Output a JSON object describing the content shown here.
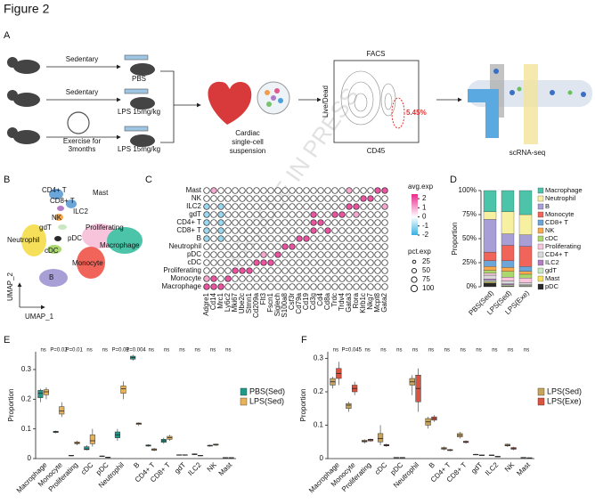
{
  "figure": {
    "title": "Figure 2",
    "panel_labels": [
      "A",
      "B",
      "C",
      "D",
      "E",
      "F"
    ],
    "watermark": "ARTICLE IN PRESS"
  },
  "panel_a": {
    "groups": [
      {
        "condition": [
          "Sedentary"
        ],
        "treatment": "PBS"
      },
      {
        "condition": [
          "Sedentary"
        ],
        "treatment": "LPS 15mg/kg"
      },
      {
        "condition": [
          "Exercise for",
          "3months"
        ],
        "treatment": "LPS 15mg/kg"
      }
    ],
    "suspension": [
      "Cardiac",
      "single-cell",
      "suspension"
    ],
    "facs_title": "FACS",
    "facs_y": "Live/Dead",
    "facs_x": "CD45",
    "gate": "5.45%",
    "sequencing": "scRNA-seq"
  },
  "panel_b": {
    "clusters": [
      "CD4+ T",
      "Mast",
      "CD8+ T",
      "ILC2",
      "NK",
      "gdT",
      "Proliferating",
      "Neutrophil",
      "pDC",
      "Macrophage",
      "cDC",
      "Monocyte",
      "B"
    ],
    "x_label": "UMAP_1",
    "y_label": "UMAP_2"
  },
  "chart_data": [
    {
      "type": "dotplot",
      "rows": [
        "Mast",
        "NK",
        "ILC2",
        "gdT",
        "CD4+ T",
        "CD8+ T",
        "B",
        "Neutrophil",
        "pDC",
        "cDC",
        "Proliferating",
        "Monocyte",
        "Macrophage"
      ],
      "categories": [
        "Adgre1",
        "Cd14",
        "Mrc1",
        "Ly6c2",
        "Mki67",
        "Ube2c",
        "Stmn1",
        "Cd209a",
        "Flt3",
        "Fscn1",
        "Siglech",
        "S100a8",
        "Csf3r",
        "Cd79a",
        "Cd19",
        "Cd3g",
        "Cd4",
        "Cd8a",
        "Trdc",
        "Trdv4",
        "Gata3",
        "Rora",
        "Klrb1c",
        "Nkg7",
        "Mcpt8",
        "Gata2"
      ],
      "values": [
        [
          0,
          1,
          0,
          0,
          0,
          0,
          0,
          0,
          0,
          0,
          0,
          0,
          0,
          0,
          0,
          0,
          0,
          0,
          0,
          0,
          1,
          0,
          0,
          0,
          2,
          2
        ],
        [
          0,
          0,
          0,
          0,
          0,
          0,
          0,
          0,
          0,
          0,
          0,
          0,
          0,
          0,
          0,
          0,
          0,
          0,
          0,
          0,
          0,
          0,
          2,
          2,
          0,
          0
        ],
        [
          -1,
          0,
          -1,
          0,
          0,
          0,
          0,
          0,
          0,
          0,
          0,
          0,
          0,
          0,
          0,
          0,
          0,
          0,
          0,
          0,
          2,
          2,
          0,
          0,
          0,
          1
        ],
        [
          -1,
          0,
          -1,
          0,
          0,
          0,
          0,
          0,
          0,
          0,
          0,
          0,
          0,
          0,
          0,
          2,
          0,
          0,
          2,
          2,
          0,
          1,
          0,
          0,
          0,
          0
        ],
        [
          -1,
          0,
          -1,
          0,
          0,
          0,
          0,
          0,
          0,
          0,
          0,
          0,
          0,
          0,
          0,
          2,
          2,
          0,
          0,
          0,
          0,
          0,
          0,
          0,
          0,
          0
        ],
        [
          -1,
          0,
          -1,
          0,
          0,
          0,
          0,
          0,
          0,
          0,
          0,
          0,
          0,
          0,
          0,
          2,
          0,
          2,
          0,
          0,
          0,
          0,
          0,
          0,
          0,
          0
        ],
        [
          -1,
          0,
          -1,
          0,
          0,
          0,
          0,
          0,
          0,
          0,
          0,
          0,
          0,
          2,
          2,
          0,
          0,
          0,
          0,
          0,
          0,
          0,
          0,
          0,
          0,
          0
        ],
        [
          0,
          0,
          0,
          0,
          0,
          0,
          0,
          0,
          0,
          0,
          0,
          2,
          2,
          0,
          0,
          0,
          0,
          0,
          0,
          0,
          0,
          0,
          0,
          0,
          0,
          0
        ],
        [
          0,
          0,
          0,
          0,
          0,
          0,
          0,
          0,
          1,
          0,
          2,
          0,
          0,
          0,
          0,
          0,
          0,
          0,
          0,
          0,
          0,
          0,
          0,
          0,
          0,
          0
        ],
        [
          0,
          0,
          0,
          0,
          0,
          0,
          0,
          2,
          2,
          2,
          0,
          0,
          0,
          0,
          0,
          0,
          0,
          0,
          0,
          0,
          0,
          0,
          0,
          0,
          0,
          0
        ],
        [
          0,
          0,
          0,
          0,
          2,
          2,
          2,
          0,
          0,
          0,
          0,
          0,
          0,
          0,
          0,
          0,
          0,
          0,
          0,
          0,
          0,
          0,
          0,
          0,
          0,
          0
        ],
        [
          1,
          2,
          0,
          2,
          0,
          0,
          0,
          0,
          0,
          0,
          0,
          0,
          0,
          0,
          0,
          0,
          0,
          0,
          0,
          0,
          0,
          0,
          0,
          0,
          0,
          0
        ],
        [
          2,
          2,
          2,
          0,
          0,
          0,
          0,
          0,
          0,
          0,
          0,
          0,
          0,
          0,
          0,
          0,
          0,
          0,
          0,
          0,
          0,
          0,
          0,
          0,
          0,
          0
        ]
      ],
      "color_title": "avg.exp",
      "colorlim": [
        -2,
        2.5
      ],
      "color_ticks": [
        2,
        1,
        0,
        -1,
        -2
      ],
      "colors": [
        "#3ab0e3",
        "#ffffff",
        "#e7298a"
      ],
      "size_title": "pct.exp",
      "size_ticks": [
        25,
        50,
        75,
        100
      ]
    },
    {
      "type": "stacked_bar",
      "categories": [
        "PBS(Sed)",
        "LPS(Sed)",
        "LPS(Exe)"
      ],
      "y_label": "Proportion",
      "ylim": [
        0,
        100
      ],
      "yticks": [
        {
          "value": 0,
          "label": "0%"
        },
        {
          "value": 25,
          "label": "25%"
        },
        {
          "value": 50,
          "label": "50%"
        },
        {
          "value": 75,
          "label": "75%"
        },
        {
          "value": 100,
          "label": "100%"
        }
      ],
      "series": [
        {
          "name": "Macrophage",
          "color": "#4bc4a9",
          "values": [
            22,
            22,
            25
          ]
        },
        {
          "name": "Neutrophil",
          "color": "#f7f0a0",
          "values": [
            8,
            23,
            21
          ]
        },
        {
          "name": "B",
          "color": "#a79fd6",
          "values": [
            34,
            12,
            12
          ]
        },
        {
          "name": "Monocyte",
          "color": "#f0645a",
          "values": [
            9,
            16,
            21
          ]
        },
        {
          "name": "CD8+ T",
          "color": "#6ca6d9",
          "values": [
            6,
            7,
            5
          ]
        },
        {
          "name": "NK",
          "color": "#f9a94b",
          "values": [
            4,
            4,
            3
          ]
        },
        {
          "name": "cDC",
          "color": "#a8d86e",
          "values": [
            3,
            6,
            4
          ]
        },
        {
          "name": "Proliferating",
          "color": "#f7c4dc",
          "values": [
            2,
            4,
            5
          ]
        },
        {
          "name": "CD4+ T",
          "color": "#d9d9d9",
          "values": [
            4,
            3,
            2
          ]
        },
        {
          "name": "ILC2",
          "color": "#b47cc7",
          "values": [
            1.5,
            1,
            0.5
          ]
        },
        {
          "name": "gdT",
          "color": "#c9e7c0",
          "values": [
            1.5,
            1,
            1
          ]
        },
        {
          "name": "Mast",
          "color": "#f6e05a",
          "values": [
            1,
            0.5,
            0.3
          ]
        },
        {
          "name": "pDC",
          "color": "#2a2a2a",
          "values": [
            4,
            0.5,
            0.2
          ]
        }
      ]
    },
    {
      "type": "box",
      "categories": [
        "Macrophage",
        "Monocyte",
        "Proliferating",
        "cDC",
        "pDC",
        "Neutrophil",
        "B",
        "CD4+ T",
        "CD8+ T",
        "gdT",
        "ILC2",
        "NK",
        "Mast"
      ],
      "significance": [
        "ns",
        "P=0.02",
        "P=0.01",
        "ns",
        "ns",
        "P=0.01",
        "P=0.004",
        "ns",
        "ns",
        "ns",
        "ns",
        "ns",
        "ns"
      ],
      "y_label": "Proportion",
      "ylim": [
        0,
        0.36
      ],
      "yticks": [
        0,
        0.1,
        0.2,
        0.3
      ],
      "series": [
        {
          "name": "PBS(Sed)",
          "color": "#1f9a8a",
          "boxes": [
            [
              0.19,
              0.205,
              0.22,
              0.23,
              0.235
            ],
            [
              0.085,
              0.088,
              0.09,
              0.092,
              0.094
            ],
            [
              0.008,
              0.009,
              0.01,
              0.011,
              0.012
            ],
            [
              0.028,
              0.03,
              0.032,
              0.04,
              0.045
            ],
            [
              0.006,
              0.007,
              0.008,
              0.009,
              0.01
            ],
            [
              0.06,
              0.07,
              0.08,
              0.09,
              0.1
            ],
            [
              0.33,
              0.335,
              0.34,
              0.345,
              0.35
            ],
            [
              0.04,
              0.042,
              0.044,
              0.046,
              0.048
            ],
            [
              0.05,
              0.055,
              0.06,
              0.065,
              0.07
            ],
            [
              0.01,
              0.011,
              0.012,
              0.013,
              0.014
            ],
            [
              0.012,
              0.013,
              0.015,
              0.016,
              0.017
            ],
            [
              0.04,
              0.042,
              0.044,
              0.045,
              0.047
            ],
            [
              0.002,
              0.0025,
              0.003,
              0.0035,
              0.004
            ]
          ]
        },
        {
          "name": "LPS(Sed)",
          "color": "#e8b25a",
          "boxes": [
            [
              0.2,
              0.215,
              0.225,
              0.232,
              0.24
            ],
            [
              0.14,
              0.15,
              0.16,
              0.175,
              0.19
            ],
            [
              0.045,
              0.05,
              0.053,
              0.056,
              0.06
            ],
            [
              0.04,
              0.05,
              0.06,
              0.08,
              0.1
            ],
            [
              0.002,
              0.003,
              0.004,
              0.005,
              0.006
            ],
            [
              0.2,
              0.22,
              0.235,
              0.245,
              0.26
            ],
            [
              0.11,
              0.115,
              0.118,
              0.12,
              0.122
            ],
            [
              0.025,
              0.028,
              0.03,
              0.033,
              0.036
            ],
            [
              0.06,
              0.065,
              0.07,
              0.075,
              0.08
            ],
            [
              0.01,
              0.011,
              0.012,
              0.013,
              0.014
            ],
            [
              0.008,
              0.009,
              0.01,
              0.011,
              0.012
            ],
            [
              0.043,
              0.045,
              0.047,
              0.049,
              0.05
            ],
            [
              0.002,
              0.0025,
              0.003,
              0.0035,
              0.004
            ]
          ]
        }
      ]
    },
    {
      "type": "box",
      "categories": [
        "Macrophage",
        "Monocyte",
        "Proliferating",
        "cDC",
        "pDC",
        "Neutrophil",
        "B",
        "CD4+ T",
        "CD8+ T",
        "gdT",
        "ILC2",
        "NK",
        "Mast"
      ],
      "significance": [
        "ns",
        "P=0.045",
        "ns",
        "ns",
        "ns",
        "ns",
        "ns",
        "ns",
        "ns",
        "ns",
        "ns",
        "ns",
        "ns"
      ],
      "y_label": "Proportion",
      "ylim": [
        0,
        0.32
      ],
      "yticks": [
        0,
        0.1,
        0.2,
        0.3
      ],
      "series": [
        {
          "name": "LPS(Sed)",
          "color": "#c9a45c",
          "boxes": [
            [
              0.21,
              0.22,
              0.23,
              0.24,
              0.245
            ],
            [
              0.14,
              0.15,
              0.16,
              0.165,
              0.17
            ],
            [
              0.045,
              0.05,
              0.052,
              0.055,
              0.058
            ],
            [
              0.04,
              0.05,
              0.06,
              0.075,
              0.1
            ],
            [
              0.002,
              0.0025,
              0.003,
              0.0035,
              0.004
            ],
            [
              0.19,
              0.22,
              0.23,
              0.24,
              0.25
            ],
            [
              0.09,
              0.1,
              0.11,
              0.12,
              0.125
            ],
            [
              0.025,
              0.028,
              0.03,
              0.033,
              0.036
            ],
            [
              0.06,
              0.065,
              0.07,
              0.075,
              0.08
            ],
            [
              0.01,
              0.011,
              0.012,
              0.013,
              0.014
            ],
            [
              0.008,
              0.009,
              0.01,
              0.011,
              0.012
            ],
            [
              0.035,
              0.038,
              0.04,
              0.043,
              0.045
            ],
            [
              0.002,
              0.0025,
              0.003,
              0.0035,
              0.004
            ]
          ]
        },
        {
          "name": "LPS(Exe)",
          "color": "#d9533f",
          "boxes": [
            [
              0.22,
              0.24,
              0.255,
              0.27,
              0.29
            ],
            [
              0.19,
              0.2,
              0.21,
              0.22,
              0.23
            ],
            [
              0.05,
              0.053,
              0.056,
              0.058,
              0.06
            ],
            [
              0.035,
              0.038,
              0.04,
              0.042,
              0.045
            ],
            [
              0.002,
              0.0025,
              0.003,
              0.0035,
              0.004
            ],
            [
              0.14,
              0.17,
              0.21,
              0.25,
              0.27
            ],
            [
              0.11,
              0.115,
              0.12,
              0.125,
              0.13
            ],
            [
              0.022,
              0.024,
              0.025,
              0.027,
              0.029
            ],
            [
              0.045,
              0.048,
              0.05,
              0.052,
              0.055
            ],
            [
              0.008,
              0.009,
              0.01,
              0.011,
              0.012
            ],
            [
              0.004,
              0.005,
              0.006,
              0.007,
              0.008
            ],
            [
              0.025,
              0.028,
              0.03,
              0.033,
              0.035
            ],
            [
              0.001,
              0.0015,
              0.002,
              0.0025,
              0.003
            ]
          ]
        }
      ]
    }
  ]
}
